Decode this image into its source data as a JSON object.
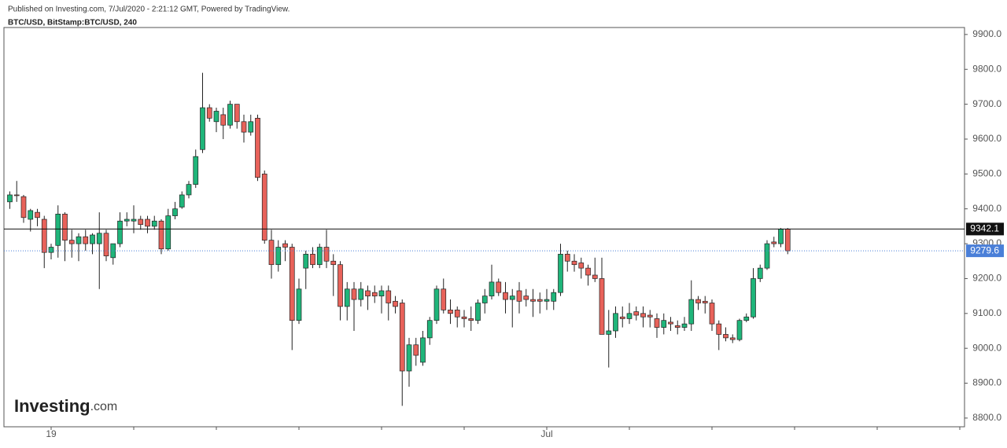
{
  "header": {
    "published": "Published on Investing.com, 7/Jul/2020 - 2:21:12 GMT, Powered by TradingView.",
    "symbol": "BTC/USD, BitStamp:BTC/USD, 240"
  },
  "logo": {
    "brand": "Investing",
    "suffix": ".com"
  },
  "chart_data": {
    "type": "candlestick",
    "up_color": "#1fb57a",
    "down_color": "#e8625a",
    "categories": [
      null,
      null,
      null,
      null,
      null,
      null,
      "19",
      null,
      null,
      null,
      null,
      null,
      null,
      null,
      null,
      null,
      null,
      null,
      null,
      null,
      null,
      null,
      null,
      null,
      null,
      null,
      null,
      null,
      null,
      null,
      null,
      null,
      null,
      null,
      null,
      null,
      null,
      null,
      null,
      null,
      null,
      null,
      null,
      null,
      null,
      null,
      null,
      null,
      null,
      null,
      null,
      null,
      null,
      null,
      null,
      null,
      null,
      null,
      null,
      null,
      null,
      null,
      null,
      null,
      null,
      null,
      null,
      null,
      null,
      null,
      null,
      null,
      null,
      null,
      null,
      null,
      null,
      null,
      "Jul",
      null,
      null,
      null,
      null,
      null,
      null,
      null,
      null,
      null,
      null,
      null,
      null,
      null,
      null,
      null,
      null,
      null,
      null,
      null,
      null,
      null,
      null,
      null,
      null,
      null,
      null,
      null,
      null,
      null,
      null,
      null,
      null,
      null,
      null,
      null
    ],
    "open": [
      9420,
      9440,
      9435,
      9370,
      9390,
      9370,
      9275,
      9295,
      9385,
      9310,
      9300,
      9320,
      9300,
      9300,
      9330,
      9260,
      9300,
      9365,
      9365,
      9370,
      9370,
      9350,
      9365,
      9285,
      9380,
      9405,
      9440,
      9470,
      9570,
      9690,
      9650,
      9670,
      9640,
      9700,
      9650,
      9620,
      9660,
      9500,
      9310,
      9240,
      9300,
      9290,
      9080,
      9230,
      9270,
      9240,
      9290,
      9250,
      9240,
      9120,
      9170,
      9140,
      9165,
      9160,
      9150,
      9165,
      9135,
      9130,
      8935,
      9010,
      8960,
      9030,
      9080,
      9170,
      9110,
      9110,
      9090,
      9085,
      9080,
      9130,
      9150,
      9190,
      9160,
      9140,
      9165,
      9150,
      9140,
      9140,
      9135,
      9135,
      9160,
      9270,
      9250,
      9245,
      9230,
      9210,
      9200,
      9040,
      9050,
      9090,
      9085,
      9105,
      9100,
      9095,
      9085,
      9060,
      9075,
      9065,
      9060,
      9070,
      9140,
      9135,
      9130,
      9070,
      9040,
      9030,
      9025,
      9080,
      9090,
      9200,
      9230,
      9305,
      9300,
      9342.1
    ],
    "high": [
      9450,
      9480,
      9440,
      9400,
      9400,
      9380,
      9300,
      9410,
      9390,
      9340,
      9330,
      9340,
      9330,
      9390,
      9340,
      9300,
      9390,
      9390,
      9410,
      9380,
      9380,
      9380,
      9370,
      9400,
      9420,
      9450,
      9480,
      9570,
      9790,
      9700,
      9690,
      9690,
      9710,
      9700,
      9670,
      9670,
      9670,
      9510,
      9340,
      9310,
      9310,
      9300,
      9200,
      9280,
      9290,
      9300,
      9340,
      9270,
      9250,
      9190,
      9190,
      9190,
      9180,
      9180,
      9180,
      9180,
      9150,
      9140,
      9030,
      9030,
      9050,
      9090,
      9180,
      9200,
      9140,
      9120,
      9110,
      9120,
      9140,
      9170,
      9240,
      9200,
      9190,
      9170,
      9190,
      9170,
      9170,
      9160,
      9170,
      9170,
      9300,
      9280,
      9270,
      9260,
      9240,
      9260,
      9260,
      9110,
      9120,
      9120,
      9130,
      9120,
      9120,
      9110,
      9100,
      9100,
      9090,
      9080,
      9090,
      9195,
      9150,
      9150,
      9140,
      9080,
      9060,
      9040,
      9085,
      9100,
      9230,
      9240,
      9310,
      9320,
      9345,
      9345
    ],
    "low": [
      9400,
      9420,
      9360,
      9335,
      9350,
      9230,
      9255,
      9260,
      9250,
      9260,
      9250,
      9280,
      9270,
      9170,
      9250,
      9240,
      9290,
      9350,
      9330,
      9340,
      9330,
      9340,
      9270,
      9280,
      9370,
      9400,
      9430,
      9460,
      9560,
      9650,
      9620,
      9600,
      9630,
      9630,
      9590,
      9610,
      9480,
      9300,
      9200,
      9220,
      9250,
      8995,
      9070,
      9170,
      9230,
      9230,
      9230,
      9150,
      9080,
      9080,
      9050,
      9120,
      9110,
      9130,
      9100,
      9080,
      9100,
      8835,
      8890,
      8950,
      8950,
      9010,
      9070,
      9100,
      9070,
      9060,
      9060,
      9050,
      9070,
      9100,
      9140,
      9150,
      9100,
      9060,
      9100,
      9120,
      9090,
      9100,
      9110,
      9110,
      9150,
      9220,
      9220,
      9200,
      9180,
      9190,
      9040,
      8945,
      9030,
      9060,
      9070,
      9080,
      9060,
      9060,
      9030,
      9040,
      9050,
      9040,
      9050,
      9050,
      9110,
      9100,
      9050,
      8995,
      9020,
      9015,
      9020,
      9075,
      9085,
      9190,
      9225,
      9290,
      9290,
      9270
    ],
    "close": [
      9440,
      9438,
      9375,
      9395,
      9375,
      9275,
      9290,
      9385,
      9310,
      9300,
      9320,
      9300,
      9325,
      9330,
      9265,
      9300,
      9365,
      9370,
      9370,
      9355,
      9350,
      9365,
      9285,
      9380,
      9400,
      9440,
      9470,
      9550,
      9690,
      9660,
      9680,
      9640,
      9700,
      9650,
      9620,
      9650,
      9490,
      9310,
      9240,
      9290,
      9290,
      9080,
      9170,
      9270,
      9240,
      9290,
      9250,
      9240,
      9120,
      9170,
      9140,
      9170,
      9150,
      9150,
      9165,
      9130,
      9120,
      8935,
      9010,
      8980,
      9030,
      9080,
      9170,
      9110,
      9100,
      9090,
      9085,
      9080,
      9130,
      9150,
      9190,
      9160,
      9140,
      9150,
      9135,
      9140,
      9135,
      9135,
      9140,
      9160,
      9270,
      9250,
      9240,
      9230,
      9210,
      9200,
      9040,
      9050,
      9100,
      9085,
      9100,
      9095,
      9090,
      9090,
      9060,
      9080,
      9070,
      9060,
      9070,
      9140,
      9130,
      9130,
      9070,
      9040,
      9030,
      9025,
      9080,
      9090,
      9200,
      9230,
      9300,
      9300,
      9342.1,
      9279.6
    ],
    "price_lines": [
      {
        "value": 9342.1,
        "color": "#111111"
      },
      {
        "value": 9279.6,
        "color": "#4a7fd8"
      }
    ],
    "ylim": [
      8775,
      9920
    ],
    "yticks": [
      {
        "value": 8800,
        "label": "8800.0"
      },
      {
        "value": 8900,
        "label": "8900.0"
      },
      {
        "value": 9000,
        "label": "9000.0"
      },
      {
        "value": 9100,
        "label": "9100.0"
      },
      {
        "value": 9200,
        "label": "9200.0"
      },
      {
        "value": 9300,
        "label": "9300.0"
      },
      {
        "value": 9400,
        "label": "9400.0"
      },
      {
        "value": 9500,
        "label": "9500.0"
      },
      {
        "value": 9600,
        "label": "9600.0"
      },
      {
        "value": 9700,
        "label": "9700.0"
      },
      {
        "value": 9800,
        "label": "9800.0"
      },
      {
        "value": 9900,
        "label": "9900.0"
      }
    ]
  }
}
